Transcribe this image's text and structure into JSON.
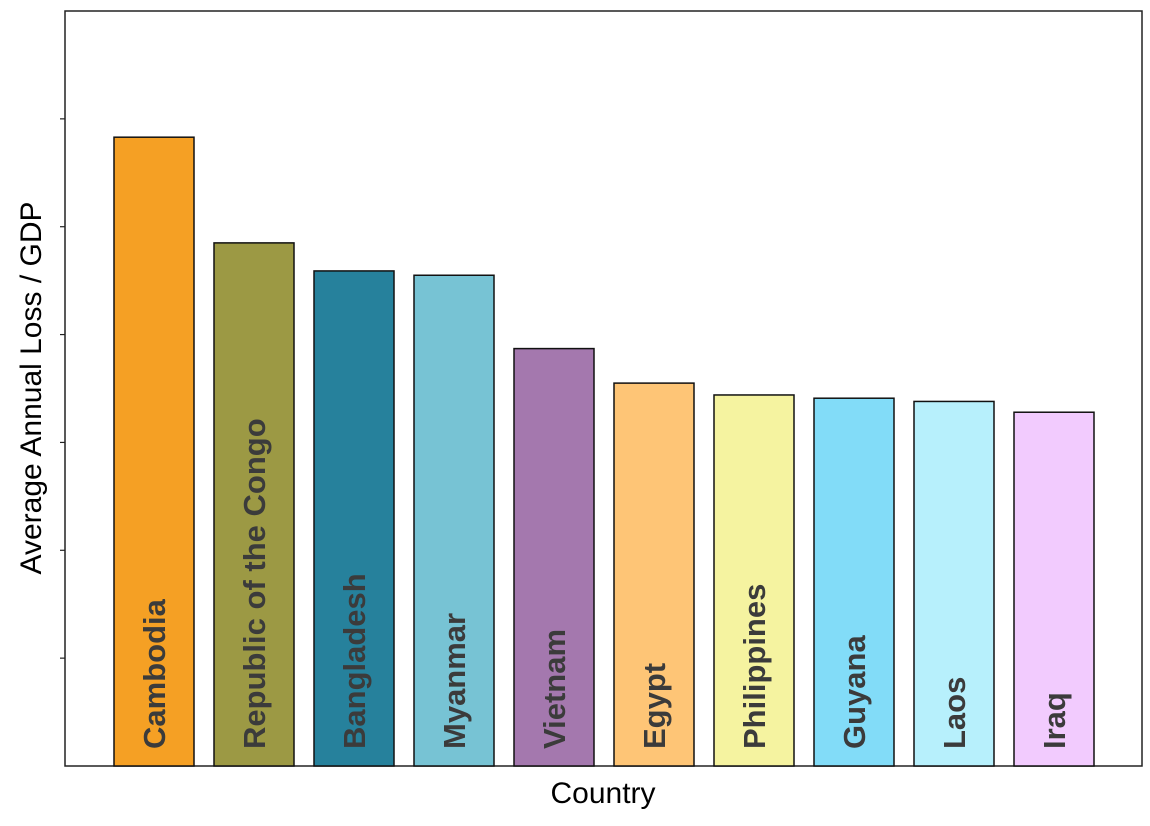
{
  "chart_data": {
    "type": "bar",
    "title": "",
    "xlabel": "Country",
    "ylabel": "Average Annual Loss / GDP",
    "categories": [
      "Cambodia",
      "Republic of the Congo",
      "Bangladesh",
      "Myanmar",
      "Vietnam",
      "Egypt",
      "Philippines",
      "Guyana",
      "Laos",
      "Iraq"
    ],
    "values": [
      5.83,
      4.85,
      4.59,
      4.55,
      3.87,
      3.55,
      3.44,
      3.41,
      3.38,
      3.28
    ],
    "colors": [
      "#f5a024",
      "#9c9944",
      "#26819c",
      "#77c3d4",
      "#a478ae",
      "#fec576",
      "#f5f3a0",
      "#82dcf8",
      "#b7f0fc",
      "#f2cbfe"
    ],
    "ylim": [
      0,
      7
    ],
    "ytick_values": [
      1,
      2,
      3,
      4,
      5,
      6
    ],
    "ytick_labels_shown": false,
    "grid": false,
    "legend": "none"
  }
}
